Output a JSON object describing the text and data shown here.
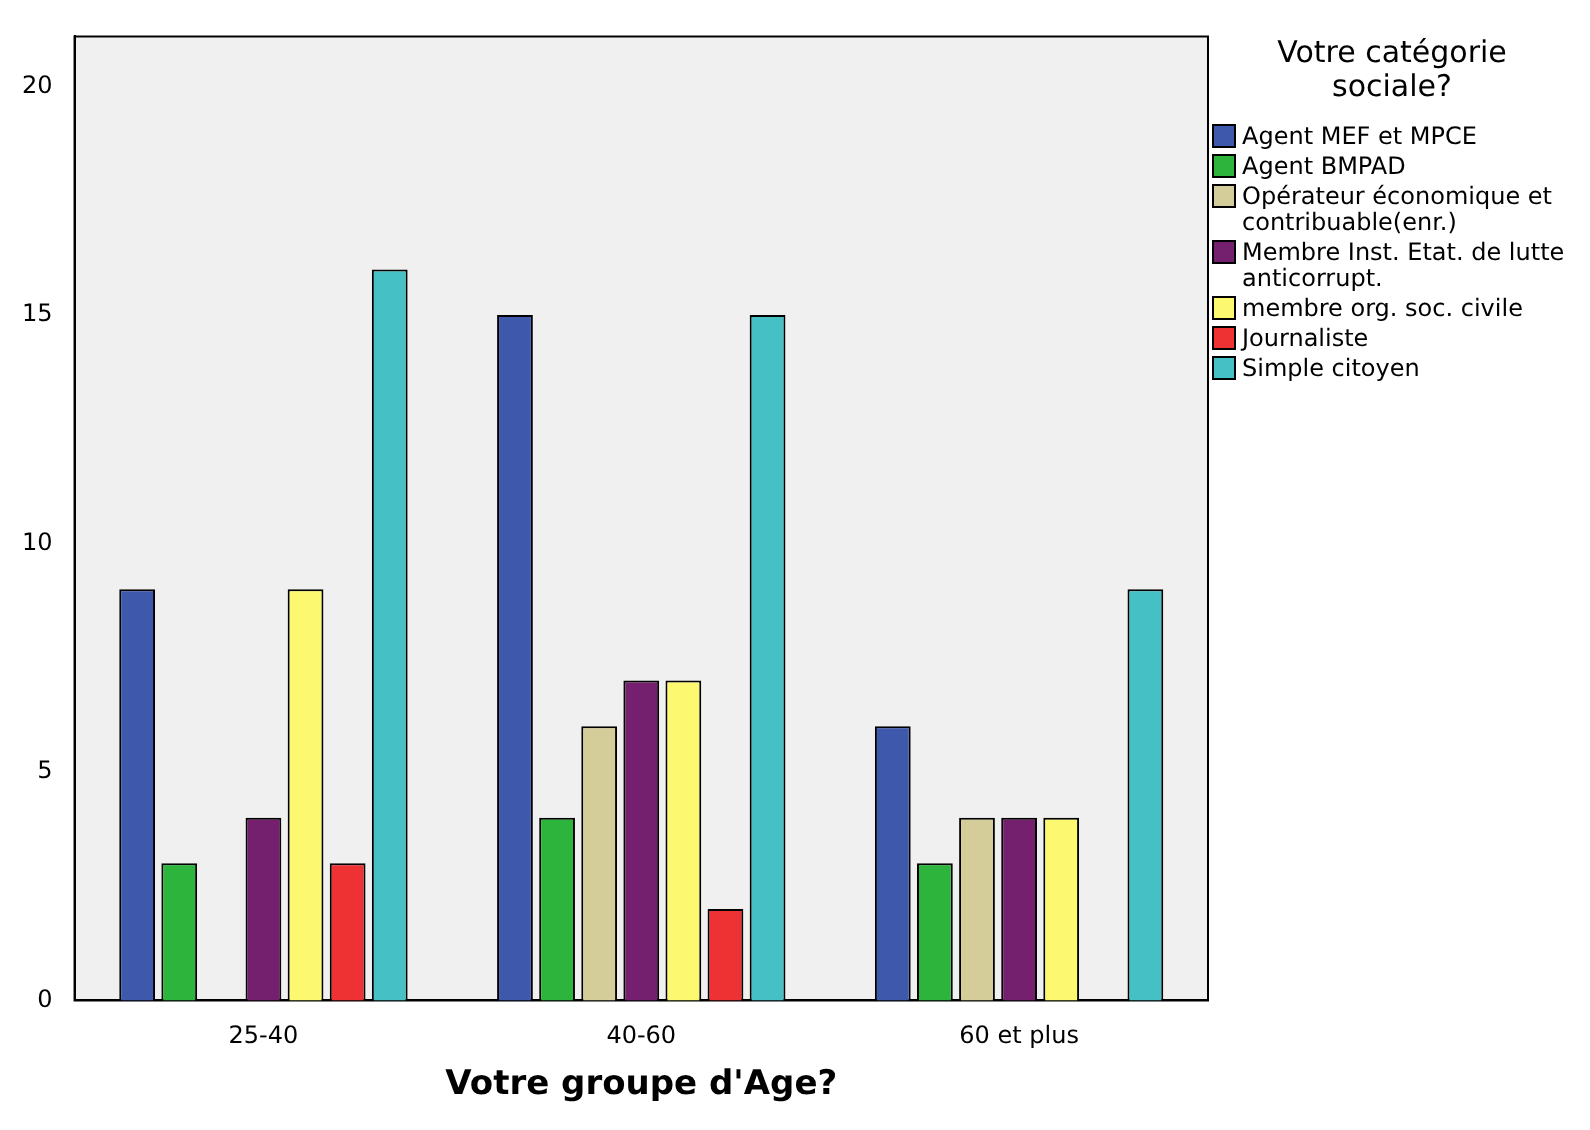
{
  "chart_data": {
    "type": "bar",
    "xlabel": "Votre groupe d'Age?",
    "legend_title": "Votre catégorie sociale?",
    "categories": [
      "25-40",
      "40-60",
      "60 et plus"
    ],
    "series": [
      {
        "name": "Agent MEF et MPCE",
        "color": "#3e58ac",
        "values": [
          9,
          15,
          6
        ]
      },
      {
        "name": "Agent BMPAD",
        "color": "#2db43c",
        "values": [
          3,
          4,
          3
        ]
      },
      {
        "name": "Opérateur économique et contribuable(enr.)",
        "color": "#d4cc99",
        "values": [
          null,
          6,
          4
        ]
      },
      {
        "name": "Membre Inst. Etat. de lutte anticorrupt.",
        "color": "#74206f",
        "values": [
          4,
          7,
          4
        ]
      },
      {
        "name": "membre org. soc. civile",
        "color": "#fcf870",
        "values": [
          9,
          7,
          4
        ]
      },
      {
        "name": "Journaliste",
        "color": "#ee3233",
        "values": [
          3,
          2,
          null
        ]
      },
      {
        "name": "Simple citoyen",
        "color": "#45c0c4",
        "values": [
          16,
          15,
          9
        ]
      }
    ],
    "ylim": [
      0,
      21.1
    ],
    "yticks": [
      0,
      5,
      10,
      15,
      20
    ],
    "grid": false,
    "legend": "right"
  }
}
